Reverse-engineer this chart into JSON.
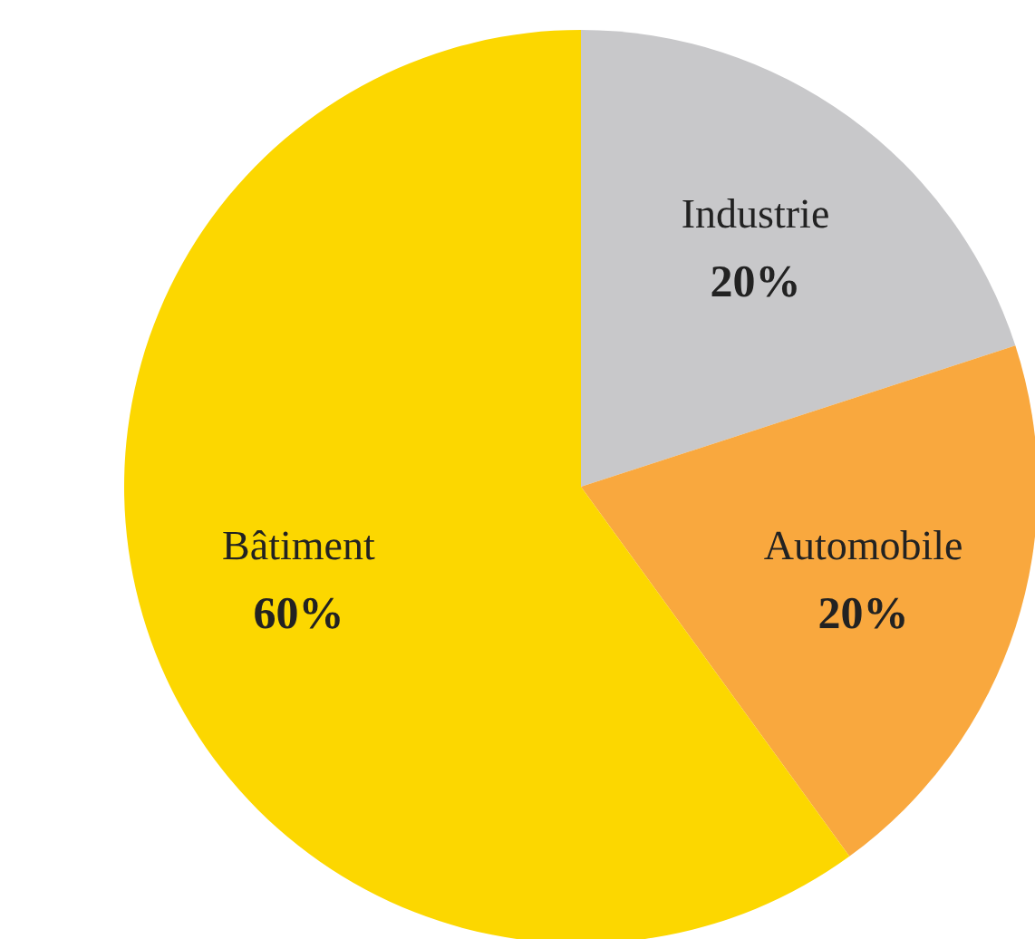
{
  "chart_data": {
    "type": "pie",
    "categories": [
      "Industrie",
      "Automobile",
      "Bâtiment"
    ],
    "values": [
      20,
      20,
      60
    ],
    "colors": [
      "#c8c8ca",
      "#f9a83e",
      "#fcd700"
    ],
    "value_labels": [
      "20%",
      "20%",
      "60%"
    ]
  }
}
